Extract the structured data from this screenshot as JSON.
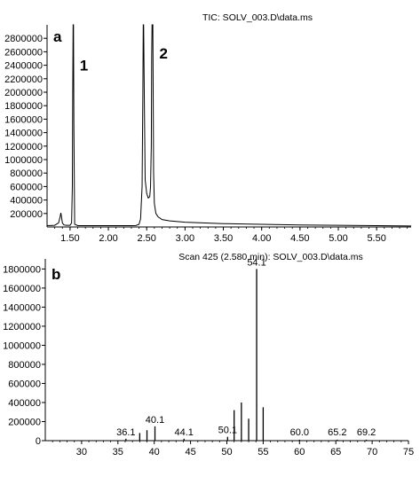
{
  "chart_data": [
    {
      "panel_label": "a",
      "type": "line",
      "title": "TIC: SOLV_003.D\\data.ms",
      "xlim": [
        1.2,
        5.95
      ],
      "ylim": [
        0,
        3000000
      ],
      "x_ticks": [
        1.5,
        2.0,
        2.5,
        3.0,
        3.5,
        4.0,
        4.5,
        5.0,
        5.5
      ],
      "x_tick_labels": [
        "1.50",
        "2.00",
        "2.50",
        "3.00",
        "3.50",
        "4.00",
        "4.50",
        "5.00",
        "5.50"
      ],
      "y_ticks": [
        200000,
        400000,
        600000,
        800000,
        1000000,
        1200000,
        1400000,
        1600000,
        1800000,
        2000000,
        2200000,
        2400000,
        2600000,
        2800000
      ],
      "y_tick_labels": [
        "200000",
        "400000",
        "600000",
        "800000",
        "1000000",
        "1200000",
        "1400000",
        "1600000",
        "1800000",
        "2000000",
        "2200000",
        "2400000",
        "2600000",
        "2800000"
      ],
      "peak_labels": [
        {
          "text": "1",
          "x": 1.68,
          "y": 2320000
        },
        {
          "text": "2",
          "x": 2.72,
          "y": 2500000
        }
      ],
      "series": [
        {
          "x": [
            1.2,
            1.3,
            1.35,
            1.37,
            1.38,
            1.39,
            1.4,
            1.42,
            1.45,
            1.5,
            1.52,
            1.53,
            1.535,
            1.54,
            1.545,
            1.55,
            1.56,
            1.6,
            1.8,
            2.0,
            2.2,
            2.3,
            2.36,
            2.4,
            2.42,
            2.44,
            2.45,
            2.455,
            2.46,
            2.47,
            2.48,
            2.5,
            2.52,
            2.54,
            2.55,
            2.56,
            2.565,
            2.57,
            2.575,
            2.58,
            2.585,
            2.59,
            2.6,
            2.62,
            2.65,
            2.7,
            2.8,
            3.0,
            3.5,
            4.0,
            4.5,
            5.0,
            5.5,
            5.95
          ],
          "y": [
            20000,
            25000,
            60000,
            150000,
            210000,
            140000,
            60000,
            30000,
            25000,
            25000,
            60000,
            600000,
            2000000,
            3000000,
            3000000,
            1500000,
            40000,
            20000,
            20000,
            20000,
            20000,
            20000,
            22000,
            40000,
            120000,
            600000,
            2000000,
            3000000,
            3000000,
            1800000,
            700000,
            500000,
            430000,
            450000,
            600000,
            1200000,
            2500000,
            3000000,
            3000000,
            3000000,
            1900000,
            800000,
            350000,
            200000,
            150000,
            110000,
            90000,
            70000,
            50000,
            40000,
            30000,
            25000,
            20000,
            15000
          ]
        }
      ]
    },
    {
      "panel_label": "b",
      "type": "bar",
      "title": "Scan 425 (2.580 min): SOLV_003.D\\data.ms",
      "xlim": [
        25,
        75
      ],
      "ylim": [
        0,
        1850000
      ],
      "x_ticks": [
        30,
        35,
        40,
        45,
        50,
        55,
        60,
        65,
        70,
        75
      ],
      "x_tick_labels": [
        "30",
        "35",
        "40",
        "45",
        "50",
        "55",
        "60",
        "65",
        "70",
        "75"
      ],
      "y_ticks": [
        0,
        200000,
        400000,
        600000,
        800000,
        1000000,
        1200000,
        1400000,
        1600000,
        1800000
      ],
      "y_tick_labels": [
        "0",
        "200000",
        "400000",
        "600000",
        "800000",
        "1000000",
        "1200000",
        "1400000",
        "1600000",
        "1800000"
      ],
      "mz": [
        36.1,
        38,
        39,
        40.1,
        44.1,
        50.1,
        51,
        52,
        53,
        54.1,
        55,
        60.0,
        65.2,
        69.2
      ],
      "intensity": [
        20000,
        80000,
        110000,
        150000,
        20000,
        40000,
        320000,
        400000,
        230000,
        1800000,
        350000,
        10000,
        10000,
        10000
      ],
      "peak_labels": [
        "36.1",
        "40.1",
        "44.1",
        "50.1",
        "54.1",
        "60.0",
        "65.2",
        "69.2"
      ]
    }
  ]
}
